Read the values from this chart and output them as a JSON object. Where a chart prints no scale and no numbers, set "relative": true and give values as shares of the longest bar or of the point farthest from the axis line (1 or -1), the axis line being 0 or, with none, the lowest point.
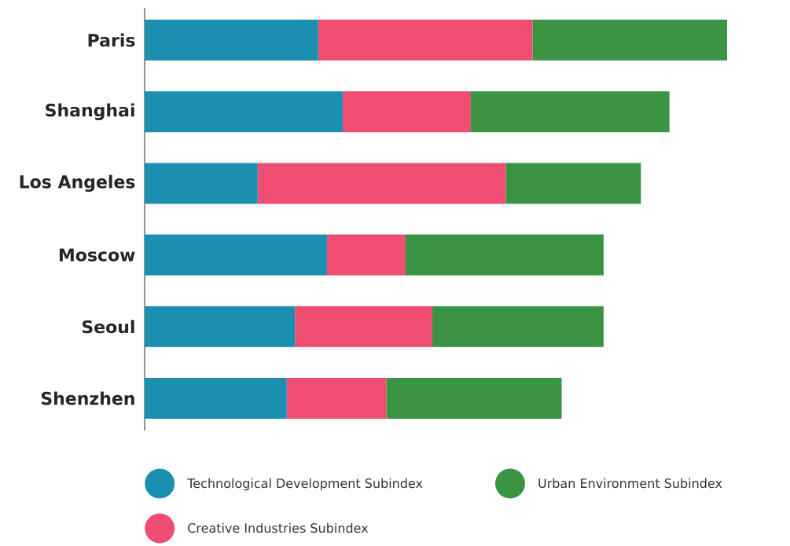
{
  "chart_data": {
    "type": "bar",
    "orientation": "horizontal",
    "stacked": true,
    "relative": true,
    "legend": "bottom",
    "categories": [
      "Paris",
      "Shanghai",
      "Los Angeles",
      "Moscow",
      "Seoul",
      "Shenzhen"
    ],
    "series": [
      {
        "name": "Technological Development Subindex",
        "color": "#1b8fb0",
        "values": [
          0.298,
          0.34,
          0.194,
          0.313,
          0.258,
          0.244
        ]
      },
      {
        "name": "Creative Industries Subindex",
        "color": "#ef4d72",
        "values": [
          0.368,
          0.22,
          0.426,
          0.135,
          0.236,
          0.171
        ]
      },
      {
        "name": "Urban Environment Subindex",
        "color": "#3a9443",
        "values": [
          0.334,
          0.341,
          0.232,
          0.34,
          0.294,
          0.301
        ]
      }
    ]
  }
}
